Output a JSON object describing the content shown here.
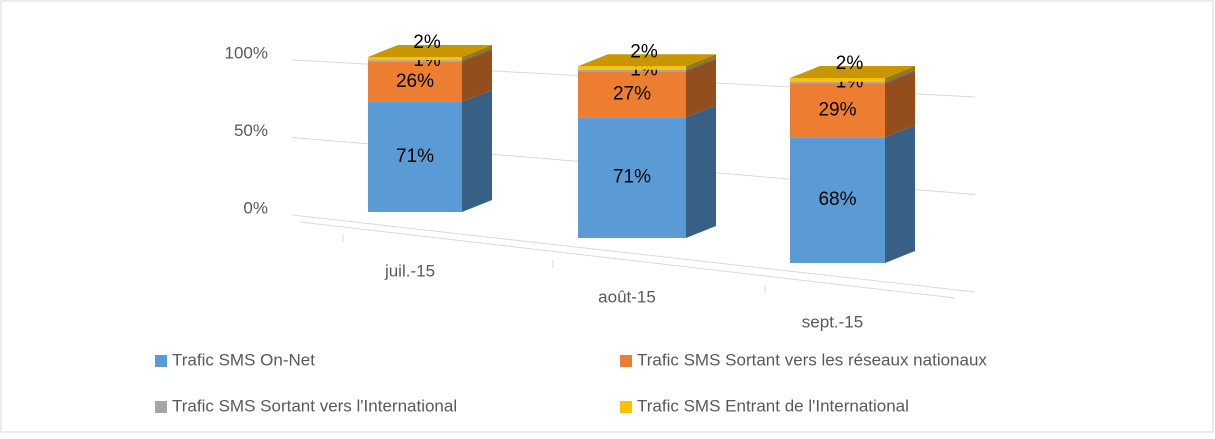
{
  "chart_data": {
    "type": "bar3d_stacked",
    "categories": [
      "juil.-15",
      "août-15",
      "sept.-15"
    ],
    "series": [
      {
        "name": "Trafic SMS On-Net",
        "color": "#5b9bd5",
        "values": [
          71,
          71,
          68
        ],
        "value_labels": [
          "71%",
          "71%",
          "68%"
        ]
      },
      {
        "name": "Trafic SMS Sortant vers les réseaux nationaux",
        "color": "#ed7d31",
        "values": [
          26,
          27,
          29
        ],
        "value_labels": [
          "26%",
          "27%",
          "29%"
        ]
      },
      {
        "name": "Trafic SMS Sortant vers l'International",
        "color": "#a5a5a5",
        "values": [
          1,
          1,
          1
        ],
        "value_labels": [
          "1%",
          "1%",
          "1%"
        ]
      },
      {
        "name": "Trafic SMS Entrant de l'International",
        "color": "#ffc000",
        "values": [
          2,
          2,
          2
        ],
        "value_labels": [
          "2%",
          "2%",
          "2%"
        ]
      }
    ],
    "ylim": [
      0,
      100
    ],
    "yticks": [
      {
        "value": 0,
        "label": "0%"
      },
      {
        "value": 50,
        "label": "50%"
      },
      {
        "value": 100,
        "label": "100%"
      }
    ],
    "grid": true,
    "legend": "bottom"
  }
}
